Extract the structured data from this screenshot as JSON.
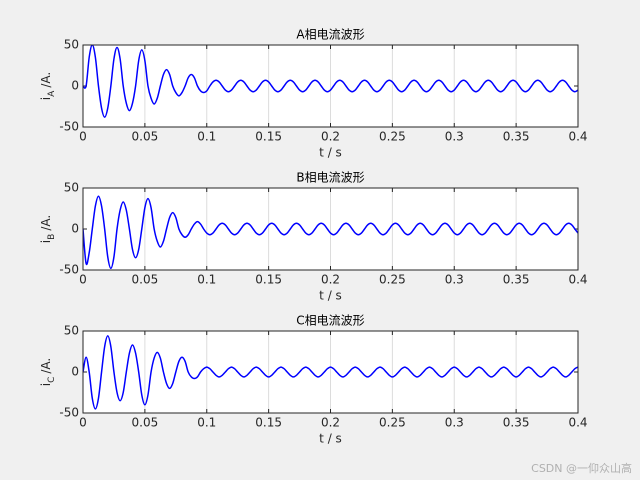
{
  "chart_data": [
    {
      "type": "line",
      "title": "A相电流波形",
      "xlabel": "t / s",
      "ylabel": "i",
      "ylabel_subscript": "A",
      "ylabel_unit": "/A.",
      "xlim": [
        0,
        0.4
      ],
      "ylim": [
        -50,
        50
      ],
      "xticks": [
        0,
        0.05,
        0.1,
        0.15,
        0.2,
        0.25,
        0.3,
        0.35,
        0.4
      ],
      "yticks": [
        -50,
        0,
        50
      ],
      "grid": "x",
      "x": [
        0,
        0.0025,
        0.005,
        0.0075,
        0.01,
        0.0125,
        0.015,
        0.0175,
        0.02,
        0.0225,
        0.025,
        0.0275,
        0.03,
        0.0325,
        0.035,
        0.0375,
        0.04,
        0.0425,
        0.045,
        0.0475,
        0.05,
        0.0525,
        0.055,
        0.0575,
        0.06,
        0.0625,
        0.065,
        0.0675,
        0.07,
        0.0725,
        0.075,
        0.0775,
        0.08,
        0.0825,
        0.085,
        0.0875,
        0.09,
        0.0925,
        0.095,
        0.0975,
        0.1,
        0.1025,
        0.105,
        0.1075,
        0.11,
        0.1125,
        0.115,
        0.1175,
        0.12,
        0.1225,
        0.125,
        0.1275,
        0.13,
        0.1325,
        0.135,
        0.1375,
        0.14,
        0.1425,
        0.145,
        0.1475,
        0.15,
        0.1525,
        0.155,
        0.1575,
        0.16,
        0.1625,
        0.165,
        0.1675,
        0.17,
        0.1725,
        0.175,
        0.1775,
        0.18,
        0.1825,
        0.185,
        0.1875,
        0.19,
        0.1925,
        0.195,
        0.1975,
        0.2,
        0.2025,
        0.205,
        0.2075,
        0.21,
        0.2125,
        0.215,
        0.2175,
        0.22,
        0.2225,
        0.225,
        0.2275,
        0.23,
        0.2325,
        0.235,
        0.2375,
        0.24,
        0.2425,
        0.245,
        0.2475,
        0.25,
        0.2525,
        0.255,
        0.2575,
        0.26,
        0.2625,
        0.265,
        0.2675,
        0.27,
        0.2725,
        0.275,
        0.2775,
        0.28,
        0.2825,
        0.285,
        0.2875,
        0.29,
        0.2925,
        0.295,
        0.2975,
        0.3,
        0.3025,
        0.305,
        0.3075,
        0.31,
        0.3125,
        0.315,
        0.3175,
        0.32,
        0.3225,
        0.325,
        0.3275,
        0.33,
        0.3325,
        0.335,
        0.3375,
        0.34,
        0.3425,
        0.345,
        0.3475,
        0.35,
        0.3525,
        0.355,
        0.3575,
        0.36,
        0.3625,
        0.365,
        0.3675,
        0.37,
        0.3725,
        0.375,
        0.3775,
        0.38,
        0.3825,
        0.385,
        0.3875,
        0.39,
        0.3925,
        0.395,
        0.3975,
        0.4
      ],
      "series": [
        {
          "color": "#0000ff",
          "values": [
            0,
            0,
            35,
            50,
            35,
            0,
            -27,
            -38,
            -27,
            0,
            33,
            47,
            33,
            0,
            -21,
            -30,
            -21,
            0,
            31,
            44,
            31,
            0,
            -15,
            -22,
            -15,
            0,
            14,
            20,
            14,
            0,
            -8,
            -12,
            -8,
            0,
            10,
            14,
            10,
            0,
            -6,
            -8,
            -6,
            0,
            5,
            7,
            5,
            0,
            -5,
            -7,
            -5,
            0,
            5,
            7,
            5,
            0,
            -5,
            -7,
            -5,
            0,
            5,
            7,
            5,
            0,
            -5,
            -7,
            -5,
            0,
            5,
            7,
            5,
            0,
            -5,
            -7,
            -5,
            0,
            5,
            7,
            5,
            0,
            -5,
            -7,
            -5,
            0,
            5,
            7,
            5,
            0,
            -5,
            -7,
            -5,
            0,
            5,
            7,
            5,
            0,
            -5,
            -7,
            -5,
            0,
            5,
            7,
            5,
            0,
            -5,
            -7,
            -5,
            0,
            5,
            7,
            5,
            0,
            -5,
            -7,
            -5,
            0,
            5,
            7,
            5,
            0,
            -5,
            -7,
            -5,
            0,
            5,
            7,
            5,
            0,
            -5,
            -7,
            -5,
            0,
            5,
            7,
            5,
            0,
            -5,
            -7,
            -5,
            0,
            5,
            7,
            5,
            0,
            -5,
            -7,
            -5,
            0,
            5,
            7,
            5,
            0,
            -5,
            -7,
            -5,
            0,
            5,
            7,
            5,
            0,
            -5,
            -7,
            -5
          ]
        }
      ]
    },
    {
      "type": "line",
      "title": "B相电流波形",
      "xlabel": "t / s",
      "ylabel": "i",
      "ylabel_subscript": "B",
      "ylabel_unit": "/A.",
      "xlim": [
        0,
        0.4
      ],
      "ylim": [
        -50,
        50
      ],
      "xticks": [
        0,
        0.05,
        0.1,
        0.15,
        0.2,
        0.25,
        0.3,
        0.35,
        0.4
      ],
      "yticks": [
        -50,
        0,
        50
      ],
      "grid": "x",
      "x": [
        0,
        0.0025,
        0.005,
        0.0075,
        0.01,
        0.0125,
        0.015,
        0.0175,
        0.02,
        0.0225,
        0.025,
        0.0275,
        0.03,
        0.0325,
        0.035,
        0.0375,
        0.04,
        0.0425,
        0.045,
        0.0475,
        0.05,
        0.0525,
        0.055,
        0.0575,
        0.06,
        0.0625,
        0.065,
        0.0675,
        0.07,
        0.0725,
        0.075,
        0.0775,
        0.08,
        0.0825,
        0.085,
        0.0875,
        0.09,
        0.0925,
        0.095,
        0.0975,
        0.1,
        0.1025,
        0.105,
        0.1075,
        0.11,
        0.1125,
        0.115,
        0.1175,
        0.12,
        0.1225,
        0.125,
        0.1275,
        0.13,
        0.1325,
        0.135,
        0.1375,
        0.14,
        0.1425,
        0.145,
        0.1475,
        0.15,
        0.1525,
        0.155,
        0.1575,
        0.16,
        0.1625,
        0.165,
        0.1675,
        0.17,
        0.1725,
        0.175,
        0.1775,
        0.18,
        0.1825,
        0.185,
        0.1875,
        0.19,
        0.1925,
        0.195,
        0.1975,
        0.2,
        0.2025,
        0.205,
        0.2075,
        0.21,
        0.2125,
        0.215,
        0.2175,
        0.22,
        0.2225,
        0.225,
        0.2275,
        0.23,
        0.2325,
        0.235,
        0.2375,
        0.24,
        0.2425,
        0.245,
        0.2475,
        0.25,
        0.2525,
        0.255,
        0.2575,
        0.26,
        0.2625,
        0.265,
        0.2675,
        0.27,
        0.2725,
        0.275,
        0.2775,
        0.28,
        0.2825,
        0.285,
        0.2875,
        0.29,
        0.2925,
        0.295,
        0.2975,
        0.3,
        0.3025,
        0.305,
        0.3075,
        0.31,
        0.3125,
        0.315,
        0.3175,
        0.32,
        0.3225,
        0.325,
        0.3275,
        0.33,
        0.3325,
        0.335,
        0.3375,
        0.34,
        0.3425,
        0.345,
        0.3475,
        0.35,
        0.3525,
        0.355,
        0.3575,
        0.36,
        0.3625,
        0.365,
        0.3675,
        0.37,
        0.3725,
        0.375,
        0.3775,
        0.38,
        0.3825,
        0.385,
        0.3875,
        0.39,
        0.3925,
        0.395,
        0.3975,
        0.4
      ],
      "series": [
        {
          "color": "#0000ff",
          "values": [
            0,
            -42,
            -29,
            0,
            28,
            40,
            28,
            0,
            -34,
            -48,
            -34,
            0,
            23,
            33,
            23,
            0,
            -25,
            -35,
            -25,
            0,
            26,
            37,
            26,
            0,
            -15,
            -22,
            -15,
            0,
            14,
            20,
            14,
            0,
            -7,
            -10,
            -7,
            0,
            6,
            9,
            6,
            0,
            -5,
            -7,
            -5,
            0,
            5,
            7,
            5,
            0,
            -5,
            -7,
            -5,
            0,
            5,
            7,
            5,
            0,
            -5,
            -7,
            -5,
            0,
            5,
            7,
            5,
            0,
            -5,
            -7,
            -5,
            0,
            5,
            7,
            5,
            0,
            -5,
            -7,
            -5,
            0,
            5,
            7,
            5,
            0,
            -5,
            -7,
            -5,
            0,
            5,
            7,
            5,
            0,
            -5,
            -7,
            -5,
            0,
            5,
            7,
            5,
            0,
            -5,
            -7,
            -5,
            0,
            5,
            7,
            5,
            0,
            -5,
            -7,
            -5,
            0,
            5,
            7,
            5,
            0,
            -5,
            -7,
            -5,
            0,
            5,
            7,
            5,
            0,
            -5,
            -7,
            -5,
            0,
            5,
            7,
            5,
            0,
            -5,
            -7,
            -5,
            0,
            5,
            7,
            5,
            0,
            -5,
            -7,
            -5,
            0,
            5,
            7,
            5,
            0,
            -5,
            -7,
            -5,
            0,
            5,
            7,
            5,
            0,
            -5,
            -7,
            -5,
            0,
            5,
            7,
            5,
            0,
            -5
          ]
        }
      ]
    },
    {
      "type": "line",
      "title": "C相电流波形",
      "xlabel": "t / s",
      "ylabel": "i",
      "ylabel_subscript": "C",
      "ylabel_unit": "/A.",
      "xlim": [
        0,
        0.4
      ],
      "ylim": [
        -50,
        50
      ],
      "xticks": [
        0,
        0.05,
        0.1,
        0.15,
        0.2,
        0.25,
        0.3,
        0.35,
        0.4
      ],
      "yticks": [
        -50,
        0,
        50
      ],
      "grid": "x",
      "x": [
        0,
        0.0025,
        0.005,
        0.0075,
        0.01,
        0.0125,
        0.015,
        0.0175,
        0.02,
        0.0225,
        0.025,
        0.0275,
        0.03,
        0.0325,
        0.035,
        0.0375,
        0.04,
        0.0425,
        0.045,
        0.0475,
        0.05,
        0.0525,
        0.055,
        0.0575,
        0.06,
        0.0625,
        0.065,
        0.0675,
        0.07,
        0.0725,
        0.075,
        0.0775,
        0.08,
        0.0825,
        0.085,
        0.0875,
        0.09,
        0.0925,
        0.095,
        0.0975,
        0.1,
        0.1025,
        0.105,
        0.1075,
        0.11,
        0.1125,
        0.115,
        0.1175,
        0.12,
        0.1225,
        0.125,
        0.1275,
        0.13,
        0.1325,
        0.135,
        0.1375,
        0.14,
        0.1425,
        0.145,
        0.1475,
        0.15,
        0.1525,
        0.155,
        0.1575,
        0.16,
        0.1625,
        0.165,
        0.1675,
        0.17,
        0.1725,
        0.175,
        0.1775,
        0.18,
        0.1825,
        0.185,
        0.1875,
        0.19,
        0.1925,
        0.195,
        0.1975,
        0.2,
        0.2025,
        0.205,
        0.2075,
        0.21,
        0.2125,
        0.215,
        0.2175,
        0.22,
        0.2225,
        0.225,
        0.2275,
        0.23,
        0.2325,
        0.235,
        0.2375,
        0.24,
        0.2425,
        0.245,
        0.2475,
        0.25,
        0.2525,
        0.255,
        0.2575,
        0.26,
        0.2625,
        0.265,
        0.2675,
        0.27,
        0.2725,
        0.275,
        0.2775,
        0.28,
        0.2825,
        0.285,
        0.2875,
        0.29,
        0.2925,
        0.295,
        0.2975,
        0.3,
        0.3025,
        0.305,
        0.3075,
        0.31,
        0.3125,
        0.315,
        0.3175,
        0.32,
        0.3225,
        0.325,
        0.3275,
        0.33,
        0.3325,
        0.335,
        0.3375,
        0.34,
        0.3425,
        0.345,
        0.3475,
        0.35,
        0.3525,
        0.355,
        0.3575,
        0.36,
        0.3625,
        0.365,
        0.3675,
        0.37,
        0.3725,
        0.375,
        0.3775,
        0.38,
        0.3825,
        0.385,
        0.3875,
        0.39,
        0.3925,
        0.395,
        0.3975,
        0.4
      ],
      "series": [
        {
          "color": "#0000ff",
          "values": [
            0,
            18,
            0,
            -32,
            -45,
            -32,
            0,
            31,
            44,
            31,
            0,
            -25,
            -35,
            -25,
            0,
            23,
            33,
            23,
            0,
            -28,
            -40,
            -28,
            0,
            17,
            24,
            17,
            0,
            -14,
            -20,
            -14,
            0,
            13,
            18,
            13,
            0,
            -6,
            -8,
            -6,
            0,
            4,
            6,
            4,
            0,
            -4,
            -6,
            -4,
            0,
            4,
            6,
            4,
            0,
            -4,
            -6,
            -4,
            0,
            4,
            6,
            4,
            0,
            -4,
            -6,
            -4,
            0,
            4,
            6,
            4,
            0,
            -4,
            -6,
            -4,
            0,
            4,
            6,
            4,
            0,
            -4,
            -6,
            -4,
            0,
            4,
            6,
            4,
            0,
            -4,
            -6,
            -4,
            0,
            4,
            6,
            4,
            0,
            -4,
            -6,
            -4,
            0,
            4,
            6,
            4,
            0,
            -4,
            -6,
            -4,
            0,
            4,
            6,
            4,
            0,
            -4,
            -6,
            -4,
            0,
            4,
            6,
            4,
            0,
            -4,
            -6,
            -4,
            0,
            4,
            6,
            4,
            0,
            -4,
            -6,
            -4,
            0,
            4,
            6,
            4,
            0,
            -4,
            -6,
            -4,
            0,
            4,
            6,
            4,
            0,
            -4,
            -6,
            -4,
            0,
            4,
            6,
            4,
            0,
            -4,
            -6,
            -4,
            0,
            4,
            6,
            4,
            0,
            -4,
            -6,
            -4,
            0,
            4,
            6
          ]
        }
      ]
    }
  ],
  "watermark": "CSDN @一仰众山高"
}
